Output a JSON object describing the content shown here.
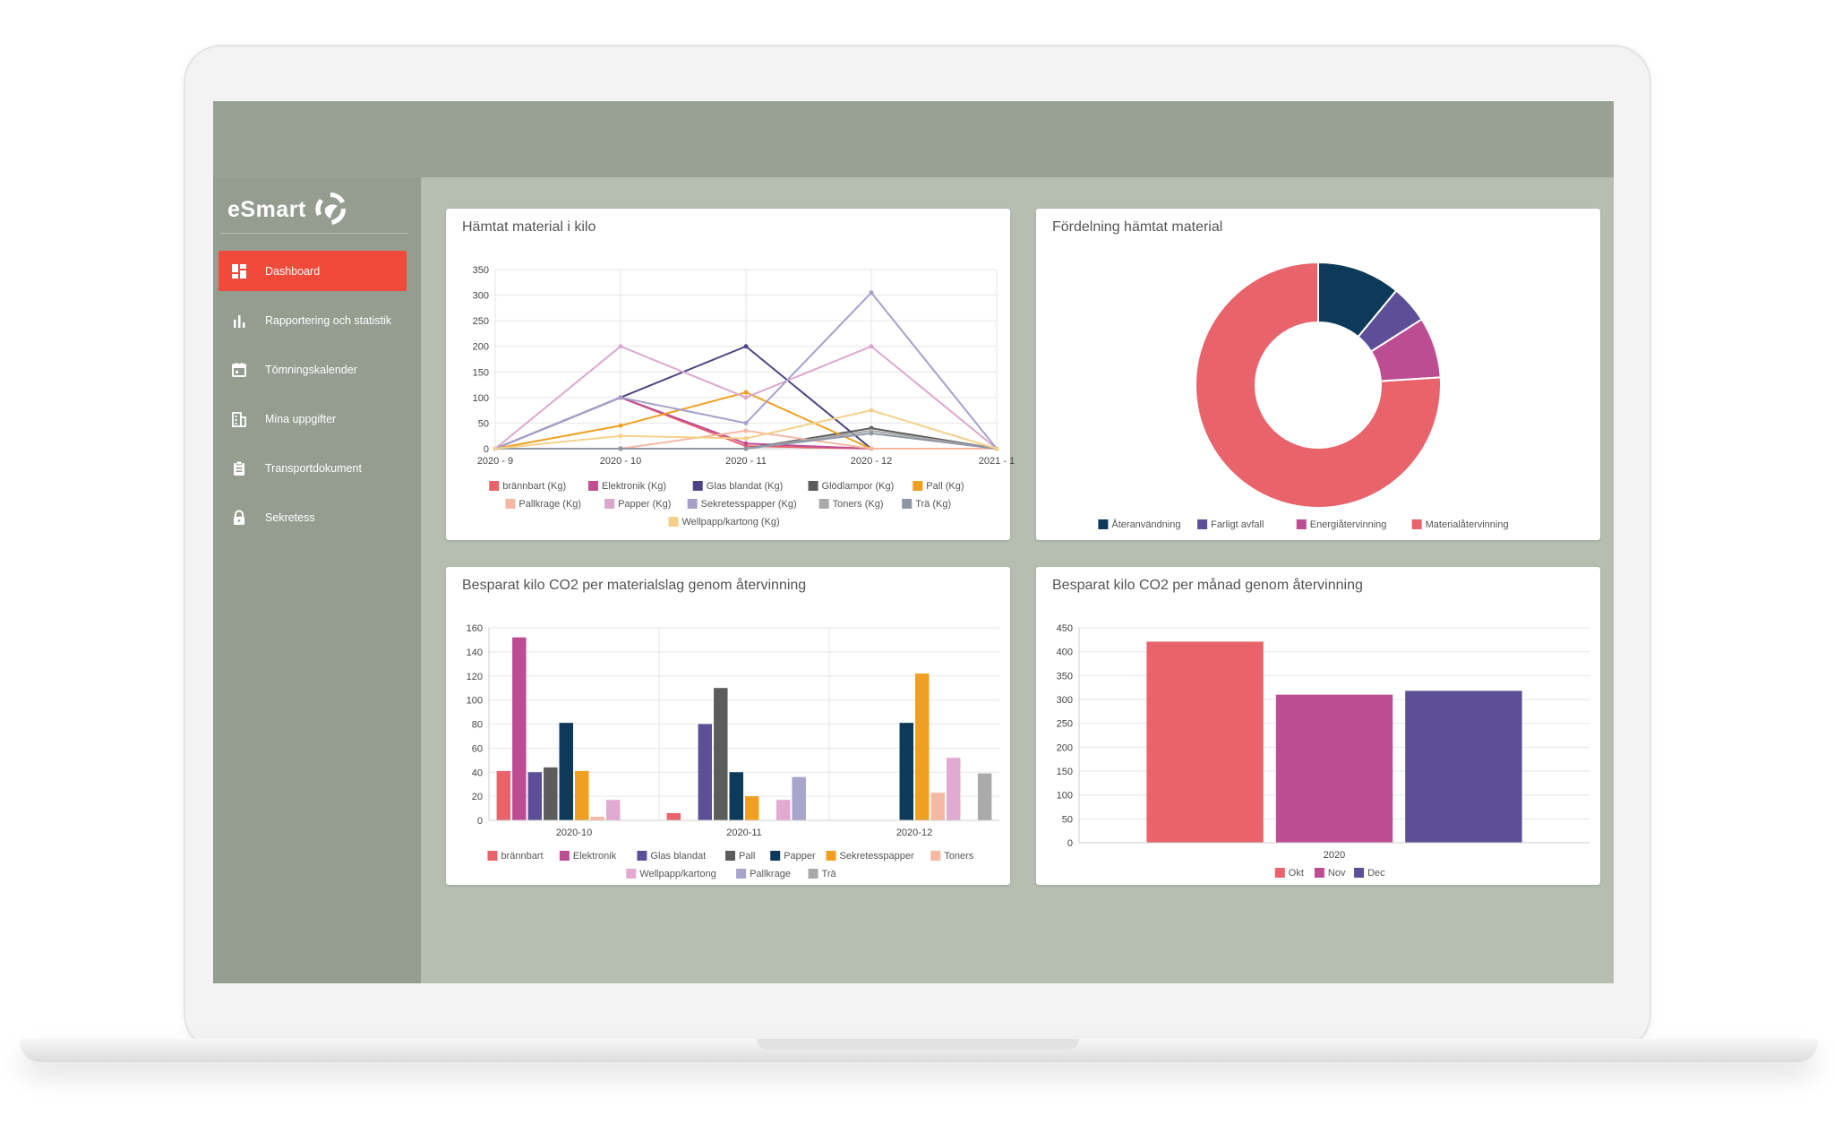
{
  "app": {
    "logo_text": "eSmart"
  },
  "sidebar": {
    "items": [
      {
        "label": "Dashboard",
        "icon": "dashboard-icon",
        "active": true
      },
      {
        "label": "Rapportering och statistik",
        "icon": "bar-chart-icon"
      },
      {
        "label": "Tömningskalender",
        "icon": "calendar-icon"
      },
      {
        "label": "Mina uppgifter",
        "icon": "building-icon"
      },
      {
        "label": "Transportdokument",
        "icon": "clipboard-icon"
      },
      {
        "label": "Sekretess",
        "icon": "lock-icon"
      }
    ]
  },
  "colors": {
    "accent": "#ef4a3a",
    "header_bg": "#99a194",
    "sidebar_bg": "#959d91",
    "content_bg": "#b5beb1"
  },
  "cards": {
    "c1_title": "Hämtat material i kilo",
    "c2_title": "Fördelning hämtat material",
    "c3_title": "Besparat kilo CO2 per materialslag genom återvinning",
    "c4_title": "Besparat kilo CO2 per månad genom återvinning"
  },
  "chart_data": [
    {
      "type": "line",
      "title": "Hämtat material i kilo",
      "x": [
        "2020 - 9",
        "2020 - 10",
        "2020 - 11",
        "2020 - 12",
        "2021 - 1"
      ],
      "ylim": [
        0,
        350
      ],
      "yticks": [
        0,
        50,
        100,
        150,
        200,
        250,
        300,
        350
      ],
      "grid": true,
      "legend_position": "bottom",
      "series": [
        {
          "name": "brännbart (Kg)",
          "color": "#e8636a",
          "values": [
            0,
            100,
            5,
            0,
            0
          ]
        },
        {
          "name": "Elektronik (Kg)",
          "color": "#c04e93",
          "values": [
            0,
            100,
            10,
            0,
            0
          ]
        },
        {
          "name": "Glas blandat (Kg)",
          "color": "#4c4384",
          "values": [
            0,
            100,
            200,
            0,
            0
          ]
        },
        {
          "name": "Glödlampor (Kg)",
          "color": "#5b5b5b",
          "values": [
            0,
            0,
            0,
            40,
            0
          ]
        },
        {
          "name": "Pall (Kg)",
          "color": "#f0a020",
          "values": [
            0,
            45,
            110,
            0,
            0
          ]
        },
        {
          "name": "Pallkrage (Kg)",
          "color": "#f5b9a3",
          "values": [
            0,
            0,
            35,
            0,
            0
          ]
        },
        {
          "name": "Papper (Kg)",
          "color": "#dca7cf",
          "values": [
            0,
            200,
            100,
            200,
            0
          ]
        },
        {
          "name": "Sekretesspapper (Kg)",
          "color": "#a5a1cb",
          "values": [
            0,
            100,
            50,
            305,
            0
          ]
        },
        {
          "name": "Toners (Kg)",
          "color": "#a9a9a9",
          "values": [
            0,
            0,
            0,
            35,
            0
          ]
        },
        {
          "name": "Trä (Kg)",
          "color": "#8e96a6",
          "values": [
            0,
            0,
            0,
            30,
            0
          ]
        },
        {
          "name": "Wellpapp/kartong (Kg)",
          "color": "#f5d08a",
          "values": [
            0,
            25,
            20,
            75,
            0
          ]
        }
      ]
    },
    {
      "type": "pie",
      "title": "Fördelning hämtat material",
      "donut": true,
      "legend_position": "bottom",
      "slices": [
        {
          "label": "Återanvändning",
          "value": 11,
          "color": "#0d3a5a"
        },
        {
          "label": "Farligt avfall",
          "value": 5,
          "color": "#5d4f97"
        },
        {
          "label": "Energiåtervinning",
          "value": 8,
          "color": "#bd4d93"
        },
        {
          "label": "Materialåtervinning",
          "value": 76,
          "color": "#e9636b"
        }
      ]
    },
    {
      "type": "bar",
      "title": "Besparat kilo CO2 per materialslag genom återvinning",
      "categories": [
        "2020-10",
        "2020-11",
        "2020-12"
      ],
      "ylim": [
        0,
        160
      ],
      "yticks": [
        0,
        20,
        40,
        60,
        80,
        100,
        120,
        140,
        160
      ],
      "grid": true,
      "legend_position": "bottom",
      "series": [
        {
          "name": "brännbart",
          "color": "#e8636a",
          "values": [
            41,
            6,
            0
          ]
        },
        {
          "name": "Elektronik",
          "color": "#bd4d93",
          "values": [
            152,
            0,
            0
          ]
        },
        {
          "name": "Glas blandat",
          "color": "#5d4f97",
          "values": [
            40,
            80,
            0
          ]
        },
        {
          "name": "Pall",
          "color": "#5c5c5c",
          "values": [
            44,
            110,
            0
          ]
        },
        {
          "name": "Papper",
          "color": "#0d3a5a",
          "values": [
            81,
            40,
            81
          ]
        },
        {
          "name": "Sekretesspapper",
          "color": "#f0a020",
          "values": [
            41,
            20,
            122
          ]
        },
        {
          "name": "Toners",
          "color": "#f5b9a3",
          "values": [
            3,
            0,
            23
          ]
        },
        {
          "name": "Wellpapp/kartong",
          "color": "#e2aad3",
          "values": [
            17,
            17,
            52
          ]
        },
        {
          "name": "Pallkrage",
          "color": "#a8a4cc",
          "values": [
            0,
            36,
            0
          ]
        },
        {
          "name": "Trä",
          "color": "#aaaaaa",
          "values": [
            0,
            0,
            39
          ]
        }
      ]
    },
    {
      "type": "bar",
      "title": "Besparat kilo CO2 per månad genom återvinning",
      "categories": [
        "2020"
      ],
      "ylim": [
        0,
        450
      ],
      "yticks": [
        0,
        50,
        100,
        150,
        200,
        250,
        300,
        350,
        400,
        450
      ],
      "grid": true,
      "legend_position": "bottom",
      "series": [
        {
          "name": "Okt",
          "color": "#e8636a",
          "values": [
            421
          ]
        },
        {
          "name": "Nov",
          "color": "#bd4d93",
          "values": [
            310
          ]
        },
        {
          "name": "Dec",
          "color": "#5d4f97",
          "values": [
            318
          ]
        }
      ]
    }
  ]
}
